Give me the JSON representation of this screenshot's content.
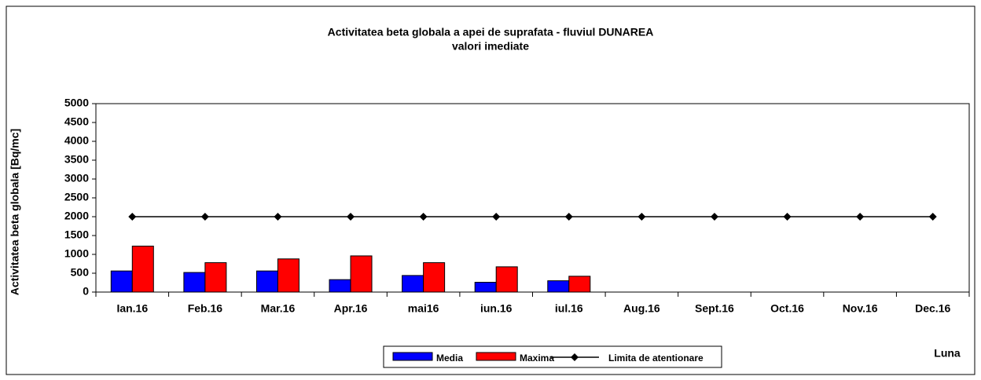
{
  "chart_data": {
    "type": "bar",
    "title": "Activitatea beta globala a apei de suprafata - fluviul DUNAREA",
    "subtitle": "valori imediate",
    "y_label": "Activitatea beta globala [Bq/mc]",
    "x_label": "Luna",
    "categories": [
      "Ian.16",
      "Feb.16",
      "Mar.16",
      "Apr.16",
      "mai16",
      "iun.16",
      "iul.16",
      "Aug.16",
      "Sept.16",
      "Oct.16",
      "Nov.16",
      "Dec.16"
    ],
    "series": [
      {
        "name": "Media",
        "type": "bar",
        "color": "#0000ff",
        "values": [
          560,
          520,
          560,
          330,
          440,
          260,
          300,
          null,
          null,
          null,
          null,
          null
        ]
      },
      {
        "name": "Maxima",
        "type": "bar",
        "color": "#ff0000",
        "values": [
          1220,
          780,
          880,
          960,
          780,
          670,
          420,
          null,
          null,
          null,
          null,
          null
        ]
      },
      {
        "name": "Limita de atentionare",
        "type": "line",
        "color": "#000000",
        "values": [
          2000,
          2000,
          2000,
          2000,
          2000,
          2000,
          2000,
          2000,
          2000,
          2000,
          2000,
          2000
        ]
      }
    ],
    "ylim": [
      0,
      5000
    ],
    "yticks": [
      0,
      500,
      1000,
      1500,
      2000,
      2500,
      3000,
      3500,
      4000,
      4500,
      5000
    ],
    "grid": false,
    "legend": "bottom"
  }
}
